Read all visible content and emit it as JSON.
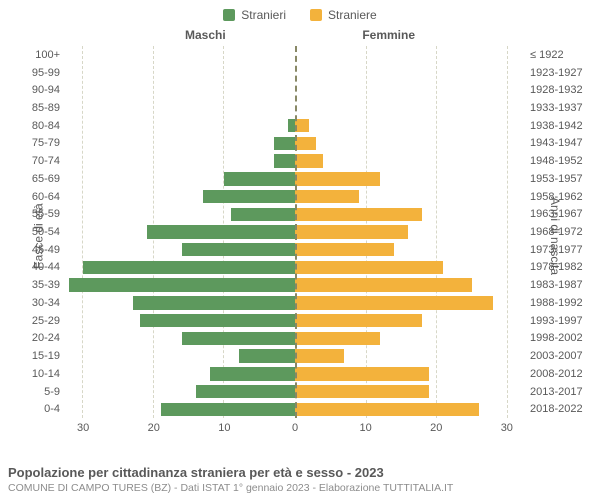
{
  "legend": {
    "male": {
      "label": "Stranieri",
      "color": "#5d995d"
    },
    "female": {
      "label": "Straniere",
      "color": "#f3b23c"
    }
  },
  "column_headers": {
    "left": "Maschi",
    "right": "Femmine"
  },
  "y_axis": {
    "left_label": "Fasce di età",
    "right_label": "Anni di nascita"
  },
  "title": "Popolazione per cittadinanza straniera per età e sesso - 2023",
  "subtitle": "COMUNE DI CAMPO TURES (BZ) - Dati ISTAT 1° gennaio 2023 - Elaborazione TUTTITALIA.IT",
  "chart": {
    "type": "population-pyramid",
    "x_max": 33,
    "x_ticks": [
      0,
      10,
      20,
      30
    ],
    "bar_colors": {
      "male": "#5d995d",
      "female": "#f3b23c"
    },
    "grid_color": "#d7d7c7",
    "center_line_color": "#888866",
    "background": "#ffffff",
    "label_fontsize": 11,
    "ages": [
      {
        "age": "100+",
        "birth": "≤ 1922",
        "m": 0,
        "f": 0
      },
      {
        "age": "95-99",
        "birth": "1923-1927",
        "m": 0,
        "f": 0
      },
      {
        "age": "90-94",
        "birth": "1928-1932",
        "m": 0,
        "f": 0
      },
      {
        "age": "85-89",
        "birth": "1933-1937",
        "m": 0,
        "f": 0
      },
      {
        "age": "80-84",
        "birth": "1938-1942",
        "m": 1,
        "f": 2
      },
      {
        "age": "75-79",
        "birth": "1943-1947",
        "m": 3,
        "f": 3
      },
      {
        "age": "70-74",
        "birth": "1948-1952",
        "m": 3,
        "f": 4
      },
      {
        "age": "65-69",
        "birth": "1953-1957",
        "m": 10,
        "f": 12
      },
      {
        "age": "60-64",
        "birth": "1958-1962",
        "m": 13,
        "f": 9
      },
      {
        "age": "55-59",
        "birth": "1963-1967",
        "m": 9,
        "f": 18
      },
      {
        "age": "50-54",
        "birth": "1968-1972",
        "m": 21,
        "f": 16
      },
      {
        "age": "45-49",
        "birth": "1973-1977",
        "m": 16,
        "f": 14
      },
      {
        "age": "40-44",
        "birth": "1978-1982",
        "m": 30,
        "f": 21
      },
      {
        "age": "35-39",
        "birth": "1983-1987",
        "m": 32,
        "f": 25
      },
      {
        "age": "30-34",
        "birth": "1988-1992",
        "m": 23,
        "f": 28
      },
      {
        "age": "25-29",
        "birth": "1993-1997",
        "m": 22,
        "f": 18
      },
      {
        "age": "20-24",
        "birth": "1998-2002",
        "m": 16,
        "f": 12
      },
      {
        "age": "15-19",
        "birth": "2003-2007",
        "m": 8,
        "f": 7
      },
      {
        "age": "10-14",
        "birth": "2008-2012",
        "m": 12,
        "f": 19
      },
      {
        "age": "5-9",
        "birth": "2013-2017",
        "m": 14,
        "f": 19
      },
      {
        "age": "0-4",
        "birth": "2018-2022",
        "m": 19,
        "f": 26
      }
    ]
  }
}
